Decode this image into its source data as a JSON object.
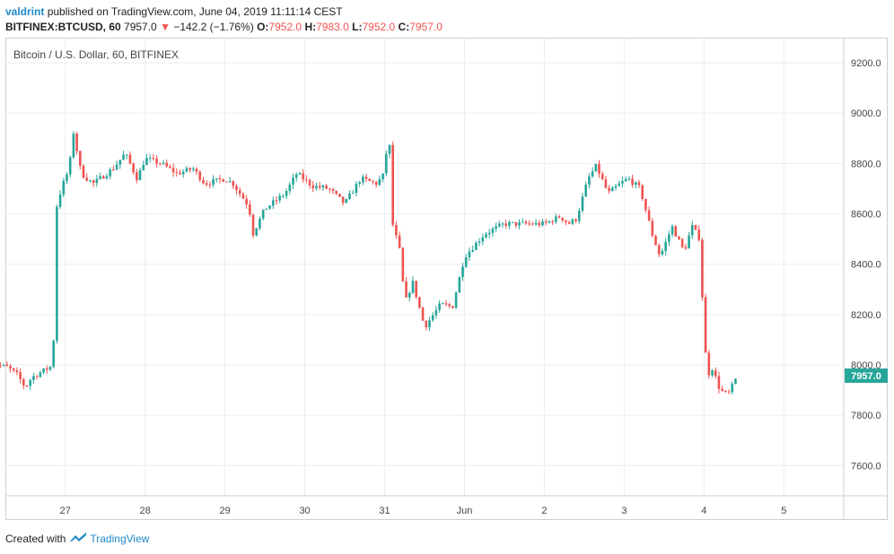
{
  "header": {
    "author": "valdrint",
    "published_text": "published on TradingView.com, June 04, 2019 11:11:14 CEST",
    "symbol": "BITFINEX:BTCUSD, 60",
    "last": "7957.0",
    "change": "−142.2 (−1.76%)",
    "o_label": "O:",
    "o_value": "7952.0",
    "h_label": "H:",
    "h_value": "7983.0",
    "l_label": "L:",
    "l_value": "7952.0",
    "c_label": "C:",
    "c_value": "7957.0"
  },
  "footer": {
    "created_with": "Created with",
    "brand": "TradingView"
  },
  "colors": {
    "up": "#26a69a",
    "down": "#ef5350",
    "grid": "#e9eef2",
    "price_badge": "#26a69a"
  },
  "chart_data": {
    "type": "candlestick",
    "title": "Bitcoin / U.S. Dollar, 60, BITFINEX",
    "interval": "60",
    "ylim": [
      7480,
      9300
    ],
    "yticks": [
      7600,
      7800,
      8000,
      8200,
      8400,
      8600,
      8800,
      9000,
      9200
    ],
    "ytick_labels": [
      "7600.0",
      "7800.0",
      "8000.0",
      "8200.0",
      "8400.0",
      "8600.0",
      "8800.0",
      "9000.0",
      "9200.0"
    ],
    "xlim": [
      -0.75,
      9.75
    ],
    "xticks": [
      0,
      1,
      2,
      3,
      4,
      5,
      6,
      7,
      8,
      9
    ],
    "xtick_labels": [
      "27",
      "28",
      "29",
      "30",
      "31",
      "Jun",
      "2",
      "3",
      "4",
      "5"
    ],
    "last_price": 7957.0,
    "last_price_label": "7957.0",
    "path": [
      [
        -0.98,
        8060
      ],
      [
        -0.85,
        8000
      ],
      [
        -0.72,
        7990
      ],
      [
        -0.6,
        7960
      ],
      [
        -0.5,
        7910
      ],
      [
        -0.42,
        7950
      ],
      [
        -0.2,
        7990
      ],
      [
        -0.15,
        8000
      ],
      [
        -0.13,
        8600
      ],
      [
        -0.05,
        8700
      ],
      [
        0.05,
        8780
      ],
      [
        0.1,
        8930
      ],
      [
        0.2,
        8760
      ],
      [
        0.35,
        8720
      ],
      [
        0.6,
        8780
      ],
      [
        0.75,
        8840
      ],
      [
        0.9,
        8740
      ],
      [
        1.0,
        8820
      ],
      [
        1.2,
        8800
      ],
      [
        1.4,
        8760
      ],
      [
        1.6,
        8780
      ],
      [
        1.75,
        8720
      ],
      [
        2.0,
        8740
      ],
      [
        2.1,
        8720
      ],
      [
        2.3,
        8630
      ],
      [
        2.35,
        8520
      ],
      [
        2.5,
        8620
      ],
      [
        2.75,
        8680
      ],
      [
        2.9,
        8760
      ],
      [
        3.1,
        8710
      ],
      [
        3.3,
        8700
      ],
      [
        3.5,
        8640
      ],
      [
        3.7,
        8740
      ],
      [
        3.9,
        8720
      ],
      [
        4.0,
        8760
      ],
      [
        4.05,
        8960
      ],
      [
        4.1,
        8560
      ],
      [
        4.2,
        8440
      ],
      [
        4.25,
        8240
      ],
      [
        4.35,
        8330
      ],
      [
        4.5,
        8150
      ],
      [
        4.7,
        8240
      ],
      [
        4.85,
        8230
      ],
      [
        5.0,
        8430
      ],
      [
        5.25,
        8520
      ],
      [
        5.5,
        8560
      ],
      [
        5.75,
        8560
      ],
      [
        6.0,
        8560
      ],
      [
        6.2,
        8590
      ],
      [
        6.3,
        8560
      ],
      [
        6.4,
        8580
      ],
      [
        6.55,
        8740
      ],
      [
        6.65,
        8790
      ],
      [
        6.8,
        8680
      ],
      [
        6.95,
        8720
      ],
      [
        7.05,
        8740
      ],
      [
        7.2,
        8700
      ],
      [
        7.35,
        8520
      ],
      [
        7.45,
        8430
      ],
      [
        7.6,
        8550
      ],
      [
        7.75,
        8450
      ],
      [
        7.85,
        8550
      ],
      [
        7.95,
        8500
      ],
      [
        8.0,
        8100
      ],
      [
        8.05,
        7960
      ],
      [
        8.1,
        7990
      ],
      [
        8.2,
        7900
      ],
      [
        8.3,
        7880
      ],
      [
        8.42,
        7957
      ]
    ]
  }
}
